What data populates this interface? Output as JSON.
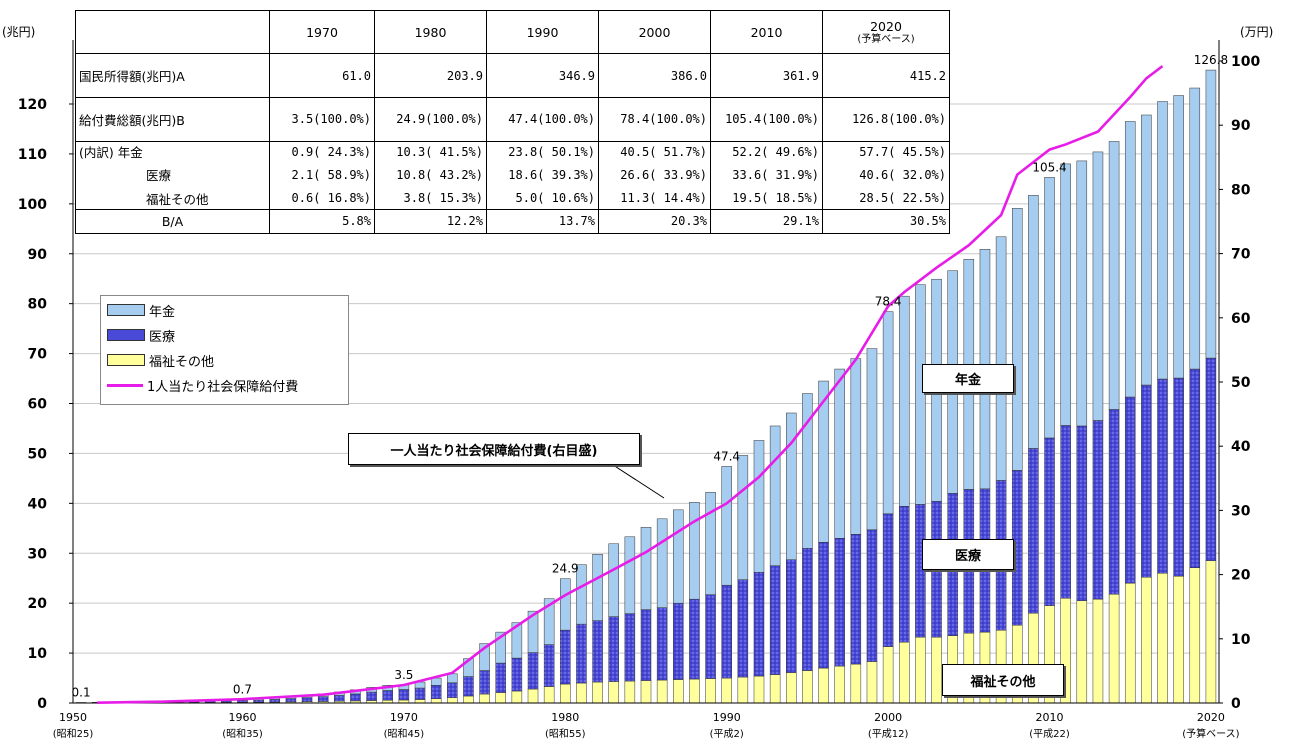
{
  "chart_data": {
    "type": "bar",
    "stacked": true,
    "x": [
      1950,
      1951,
      1952,
      1953,
      1954,
      1955,
      1956,
      1957,
      1958,
      1959,
      1960,
      1961,
      1962,
      1963,
      1964,
      1965,
      1966,
      1967,
      1968,
      1969,
      1970,
      1971,
      1972,
      1973,
      1974,
      1975,
      1976,
      1977,
      1978,
      1979,
      1980,
      1981,
      1982,
      1983,
      1984,
      1985,
      1986,
      1987,
      1988,
      1989,
      1990,
      1991,
      1992,
      1993,
      1994,
      1995,
      1996,
      1997,
      1998,
      1999,
      2000,
      2001,
      2002,
      2003,
      2004,
      2005,
      2006,
      2007,
      2008,
      2009,
      2010,
      2011,
      2012,
      2013,
      2014,
      2015,
      2016,
      2017,
      2018,
      2019,
      2020
    ],
    "series": [
      {
        "name": "福祉その他",
        "color": "#ffff9c",
        "values": [
          0.02,
          0.03,
          0.05,
          0.06,
          0.07,
          0.08,
          0.09,
          0.1,
          0.11,
          0.12,
          0.14,
          0.16,
          0.19,
          0.23,
          0.27,
          0.31,
          0.36,
          0.42,
          0.49,
          0.55,
          0.6,
          0.7,
          0.85,
          1.05,
          1.4,
          1.8,
          2.1,
          2.4,
          2.8,
          3.3,
          3.8,
          4.0,
          4.2,
          4.3,
          4.4,
          4.5,
          4.6,
          4.7,
          4.8,
          4.9,
          5.0,
          5.2,
          5.4,
          5.7,
          6.1,
          6.5,
          7.0,
          7.4,
          7.8,
          8.3,
          11.3,
          12.2,
          13.2,
          13.2,
          13.5,
          14.0,
          14.2,
          14.6,
          15.6,
          18.0,
          19.5,
          21.0,
          20.5,
          20.8,
          21.8,
          24.0,
          25.2,
          26.0,
          25.4,
          27.1,
          28.5
        ]
      },
      {
        "name": "医療",
        "color": "#4a4ad8",
        "values": [
          0.04,
          0.06,
          0.09,
          0.12,
          0.14,
          0.16,
          0.19,
          0.22,
          0.26,
          0.3,
          0.35,
          0.42,
          0.52,
          0.65,
          0.8,
          0.95,
          1.15,
          1.4,
          1.7,
          1.95,
          2.1,
          2.3,
          2.7,
          3.0,
          3.9,
          4.7,
          5.9,
          6.6,
          7.3,
          8.4,
          10.8,
          11.8,
          12.3,
          13.0,
          13.5,
          14.2,
          14.5,
          15.3,
          16.0,
          16.8,
          18.6,
          19.5,
          20.8,
          21.8,
          22.6,
          24.5,
          25.2,
          25.6,
          26.0,
          26.4,
          26.6,
          27.2,
          26.6,
          27.2,
          28.5,
          28.8,
          28.7,
          30.0,
          31.0,
          33.0,
          33.6,
          34.6,
          35.0,
          35.8,
          37.0,
          37.3,
          38.5,
          38.9,
          39.7,
          39.8,
          40.6
        ]
      },
      {
        "name": "年金",
        "color": "#a6cdf0",
        "values": [
          0.04,
          0.05,
          0.06,
          0.07,
          0.08,
          0.09,
          0.1,
          0.11,
          0.13,
          0.15,
          0.21,
          0.25,
          0.31,
          0.4,
          0.48,
          0.59,
          0.7,
          0.83,
          0.95,
          1.05,
          0.9,
          1.2,
          1.45,
          1.8,
          3.6,
          5.4,
          6.2,
          7.1,
          8.3,
          9.2,
          10.3,
          11.9,
          13.3,
          14.6,
          15.4,
          16.5,
          17.8,
          18.7,
          19.4,
          20.5,
          23.8,
          24.9,
          26.4,
          28.0,
          29.4,
          31.0,
          32.3,
          33.9,
          35.2,
          36.3,
          40.5,
          42.1,
          44.0,
          44.5,
          44.6,
          46.1,
          48.0,
          48.8,
          52.5,
          50.7,
          52.2,
          52.4,
          53.1,
          53.8,
          53.7,
          55.2,
          54.1,
          55.6,
          56.6,
          56.3,
          57.7
        ]
      }
    ],
    "per_capita": {
      "name": "1人当たり社会保障給付費",
      "unit": "万円",
      "x": [
        1951,
        1955,
        1960,
        1965,
        1970,
        1973,
        1975,
        1978,
        1980,
        1983,
        1985,
        1988,
        1990,
        1992,
        1994,
        1996,
        1998,
        2000,
        2001,
        2003,
        2005,
        2007,
        2008,
        2010,
        2011,
        2013,
        2015,
        2016,
        2017
      ],
      "values": [
        0.05,
        0.2,
        0.6,
        1.3,
        2.8,
        4.7,
        8.6,
        13.7,
        16.8,
        20.8,
        23.5,
        28.3,
        31.1,
        35.2,
        40.5,
        47.0,
        53.5,
        61.8,
        64.0,
        67.8,
        71.3,
        76.0,
        82.3,
        86.2,
        87.0,
        89.0,
        94.4,
        97.3,
        99.2
      ]
    },
    "labels": [
      {
        "x": 1950,
        "text": "0.1"
      },
      {
        "x": 1960,
        "text": "0.7"
      },
      {
        "x": 1970,
        "text": "3.5"
      },
      {
        "x": 1980,
        "text": "24.9"
      },
      {
        "x": 1990,
        "text": "47.4"
      },
      {
        "x": 2000,
        "text": "78.4"
      },
      {
        "x": 2010,
        "text": "105.4"
      },
      {
        "x": 2020,
        "text": "126.8"
      }
    ],
    "ylabel_left": "(兆円)",
    "ylabel_right": "(万円)",
    "ylim_left": [
      0,
      130
    ],
    "ylim_right": [
      0,
      100
    ],
    "yticks_left": [
      0,
      10,
      20,
      30,
      40,
      50,
      60,
      70,
      80,
      90,
      100,
      110,
      120
    ],
    "yticks_right": [
      0,
      10,
      20,
      30,
      40,
      50,
      60,
      70,
      80,
      90,
      100
    ],
    "xticks": [
      {
        "year": 1950,
        "label": "1950",
        "sub": "(昭和25)"
      },
      {
        "year": 1960,
        "label": "1960",
        "sub": "(昭和35)"
      },
      {
        "year": 1970,
        "label": "1970",
        "sub": "(昭和45)"
      },
      {
        "year": 1980,
        "label": "1980",
        "sub": "(昭和55)"
      },
      {
        "year": 1990,
        "label": "1990",
        "sub": "(平成2)"
      },
      {
        "year": 2000,
        "label": "2000",
        "sub": "(平成12)"
      },
      {
        "year": 2010,
        "label": "2010",
        "sub": "(平成22)"
      },
      {
        "year": 2020,
        "label": "2020",
        "sub": "(予算ベース)"
      }
    ]
  },
  "table": {
    "headers": [
      "1970",
      "1980",
      "1990",
      "2000",
      "2010"
    ],
    "header_2020": "2020",
    "header_2020_sub": "(予算ベース)",
    "rows": [
      {
        "label": "国民所得額(兆円)A",
        "cells": [
          "61.0",
          "203.9",
          "346.9",
          "386.0",
          "361.9",
          "415.2"
        ]
      },
      {
        "label": "給付費総額(兆円)B",
        "cells": [
          "3.5(100.0%)",
          "24.9(100.0%)",
          "47.4(100.0%)",
          "78.4(100.0%)",
          "105.4(100.0%)",
          "126.8(100.0%)"
        ]
      },
      {
        "label": "(内訳) 年金",
        "cells": [
          "0.9( 24.3%)",
          "10.3( 41.5%)",
          "23.8( 50.1%)",
          "40.5( 51.7%)",
          "52.2( 49.6%)",
          "57.7( 45.5%)"
        ]
      },
      {
        "label": "医療",
        "cells": [
          "2.1( 58.9%)",
          "10.8( 43.2%)",
          "18.6( 39.3%)",
          "26.6( 33.9%)",
          "33.6( 31.9%)",
          "40.6( 32.0%)"
        ]
      },
      {
        "label": "福祉その他",
        "cells": [
          "0.6( 16.8%)",
          "3.8( 15.3%)",
          "5.0( 10.6%)",
          "11.3( 14.4%)",
          "19.5( 18.5%)",
          "28.5( 22.5%)"
        ]
      },
      {
        "label": "B/A",
        "cells": [
          "5.8%",
          "12.2%",
          "13.7%",
          "20.3%",
          "29.1%",
          "30.5%"
        ]
      }
    ]
  },
  "legend": {
    "pension": "年金",
    "medical": "医療",
    "welfare": "福祉その他",
    "per_capita": "1人当たり社会保障給付費",
    "pension_color": "#a6cdf0",
    "medical_color": "#4a4ad8",
    "welfare_color": "#ffff9c",
    "line_color": "#e81ce8"
  },
  "annotations": {
    "callout": "一人当たり社会保障給付費(右目盛)",
    "pension_box": "年金",
    "medical_box": "医療",
    "welfare_box": "福祉その他"
  }
}
